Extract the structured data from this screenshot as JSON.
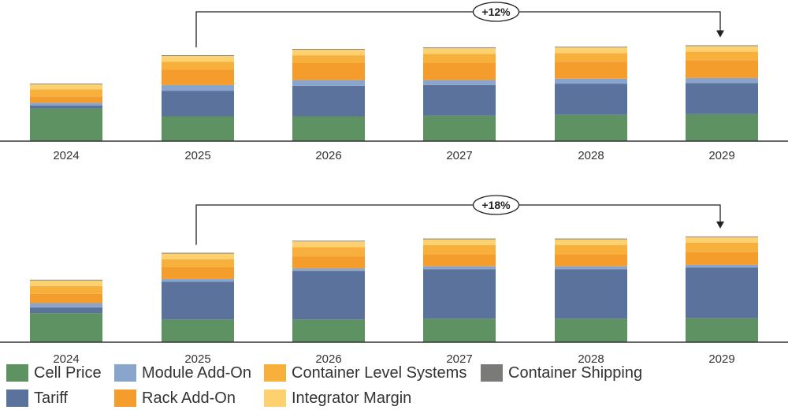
{
  "colors": {
    "cell_price": "#5e9262",
    "tariff": "#5a729c",
    "module_addon": "#8aa5cc",
    "rack_addon": "#f49c2c",
    "container_level_systems": "#f8b03c",
    "integrator_margin": "#fdd070",
    "container_shipping": "#7a7a78"
  },
  "chart_data": [
    {
      "type": "bar",
      "stacked": true,
      "categories": [
        "2024",
        "2025",
        "2026",
        "2027",
        "2028",
        "2029"
      ],
      "series": [
        {
          "name": "Cell Price",
          "key": "cell_price",
          "values": [
            46,
            35,
            35,
            36,
            37,
            38
          ]
        },
        {
          "name": "Tariff",
          "key": "tariff",
          "values": [
            4,
            36,
            43,
            43,
            44,
            44
          ]
        },
        {
          "name": "Module Add-On",
          "key": "module_addon",
          "values": [
            4,
            8,
            8,
            7,
            7,
            7
          ]
        },
        {
          "name": "Rack Add-On",
          "key": "rack_addon",
          "values": [
            9,
            22,
            24,
            24,
            24,
            25
          ]
        },
        {
          "name": "Container Level Systems",
          "key": "container_level_systems",
          "values": [
            10,
            11,
            11,
            13,
            12,
            12
          ]
        },
        {
          "name": "Integrator Margin",
          "key": "integrator_margin",
          "values": [
            7,
            8,
            8,
            8,
            8,
            8
          ]
        },
        {
          "name": "Container Shipping",
          "key": "container_shipping",
          "values": [
            1,
            1,
            1,
            1,
            1,
            1
          ]
        }
      ],
      "ylim": [
        0,
        150
      ],
      "annotation": {
        "label": "+12%",
        "from": "2025",
        "to": "2029"
      }
    },
    {
      "type": "bar",
      "stacked": true,
      "categories": [
        "2024",
        "2025",
        "2026",
        "2027",
        "2028",
        "2029"
      ],
      "series": [
        {
          "name": "Cell Price",
          "key": "cell_price",
          "values": [
            41,
            32,
            32,
            33,
            33,
            34
          ]
        },
        {
          "name": "Tariff",
          "key": "tariff",
          "values": [
            8,
            53,
            68,
            70,
            70,
            71
          ]
        },
        {
          "name": "Module Add-On",
          "key": "module_addon",
          "values": [
            6,
            4,
            4,
            4,
            4,
            4
          ]
        },
        {
          "name": "Rack Add-On",
          "key": "rack_addon",
          "values": [
            13,
            17,
            17,
            17,
            17,
            18
          ]
        },
        {
          "name": "Container Level Systems",
          "key": "container_level_systems",
          "values": [
            11,
            11,
            13,
            13,
            13,
            13
          ]
        },
        {
          "name": "Integrator Margin",
          "key": "integrator_margin",
          "values": [
            8,
            8,
            8,
            8,
            8,
            8
          ]
        },
        {
          "name": "Container Shipping",
          "key": "container_shipping",
          "values": [
            1,
            1,
            1,
            1,
            1,
            1
          ]
        }
      ],
      "ylim": [
        0,
        150
      ],
      "annotation": {
        "label": "+18%",
        "from": "2025",
        "to": "2029"
      }
    }
  ],
  "legend": [
    {
      "label": "Cell Price",
      "key": "cell_price"
    },
    {
      "label": "Tariff",
      "key": "tariff"
    },
    {
      "label": "Module Add-On",
      "key": "module_addon"
    },
    {
      "label": "Rack Add-On",
      "key": "rack_addon"
    },
    {
      "label": "Container Level Systems",
      "key": "container_level_systems"
    },
    {
      "label": "Integrator Margin",
      "key": "integrator_margin"
    },
    {
      "label": "Container Shipping",
      "key": "container_shipping"
    }
  ]
}
